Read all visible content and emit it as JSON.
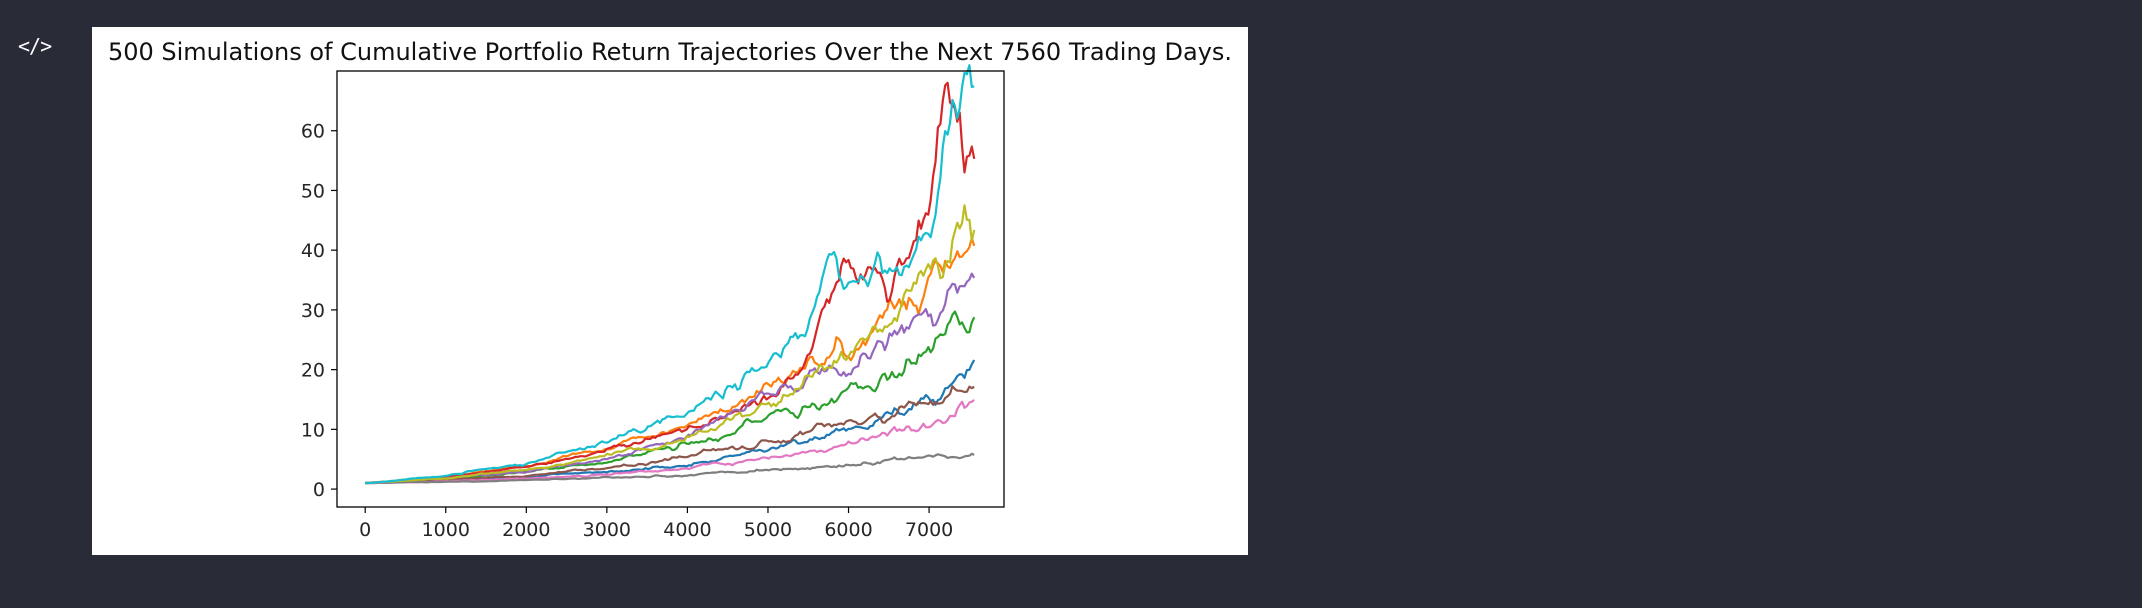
{
  "cell": {
    "icon": "code-icon",
    "icon_glyph": "</>"
  },
  "chart_data": {
    "type": "line",
    "title": "500 Simulations of Cumulative Portfolio Return Trajectories Over the Next 7560 Trading Days.",
    "xlabel": "",
    "ylabel": "",
    "xlim": [
      -350,
      7930
    ],
    "ylim": [
      -3,
      70
    ],
    "x_ticks": [
      0,
      1000,
      2000,
      3000,
      4000,
      5000,
      6000,
      7000
    ],
    "y_ticks": [
      0,
      10,
      20,
      30,
      40,
      50,
      60
    ],
    "grid": false,
    "legend": "none",
    "series_count": 500,
    "n_points": 7561,
    "palette": [
      "#1f77b4",
      "#ff7f0e",
      "#2ca02c",
      "#d62728",
      "#9467bd",
      "#8c564b",
      "#e377c2",
      "#7f7f7f",
      "#bcbd22",
      "#17becf"
    ],
    "series": [
      {
        "color": "#1f77b4",
        "x": [
          0,
          1000,
          2000,
          3000,
          4000,
          5000,
          6000,
          7000,
          7560
        ],
        "values": [
          1,
          1.4,
          2.0,
          2.9,
          4.2,
          6.5,
          10,
          16,
          22
        ]
      },
      {
        "color": "#ff7f0e",
        "x": [
          0,
          1000,
          2000,
          3000,
          4000,
          5000,
          6000,
          7000,
          7560
        ],
        "values": [
          1,
          2.0,
          4.0,
          7.0,
          11,
          17,
          24,
          36,
          42
        ]
      },
      {
        "color": "#2ca02c",
        "x": [
          0,
          1000,
          2000,
          3000,
          4000,
          5000,
          6000,
          7000,
          7560
        ],
        "values": [
          1,
          1.6,
          2.8,
          4.5,
          7.5,
          11,
          16,
          24,
          28
        ]
      },
      {
        "color": "#d62728",
        "x": [
          0,
          1000,
          2000,
          3000,
          4000,
          4500,
          5000,
          5500,
          6000,
          6300,
          6500,
          7000,
          7200,
          7560
        ],
        "values": [
          1,
          2.0,
          3.8,
          6.5,
          10,
          12,
          15,
          22,
          40,
          36,
          33,
          46,
          64,
          55
        ]
      },
      {
        "color": "#9467bd",
        "x": [
          0,
          1000,
          2000,
          3000,
          4000,
          4500,
          5000,
          6000,
          7000,
          7560
        ],
        "values": [
          1,
          1.7,
          3.0,
          5.0,
          9,
          13,
          17,
          20,
          26,
          33
        ]
      },
      {
        "color": "#8c564b",
        "x": [
          0,
          1000,
          2000,
          3000,
          4000,
          5000,
          6000,
          7000,
          7560
        ],
        "values": [
          1,
          1.5,
          2.3,
          3.5,
          5.5,
          8,
          11,
          15,
          18
        ]
      },
      {
        "color": "#e377c2",
        "x": [
          0,
          1000,
          2000,
          3000,
          4000,
          5000,
          6000,
          7000,
          7560
        ],
        "values": [
          1,
          1.3,
          1.8,
          2.5,
          3.6,
          5.2,
          7.5,
          11,
          14
        ]
      },
      {
        "color": "#7f7f7f",
        "x": [
          0,
          1000,
          2000,
          3000,
          4000,
          5000,
          6000,
          7000,
          7560
        ],
        "values": [
          1,
          1.2,
          1.5,
          1.9,
          2.4,
          3.1,
          4.0,
          5.2,
          6
        ]
      },
      {
        "color": "#bcbd22",
        "x": [
          0,
          1000,
          2000,
          3000,
          4000,
          5000,
          6000,
          7000,
          7560
        ],
        "values": [
          1,
          1.8,
          3.3,
          5.5,
          9,
          14,
          22,
          38,
          46
        ]
      },
      {
        "color": "#17becf",
        "x": [
          0,
          1000,
          2000,
          3000,
          4000,
          5000,
          5500,
          5800,
          6000,
          6500,
          7000,
          7300,
          7560
        ],
        "values": [
          1,
          2.2,
          4.5,
          8,
          13,
          20,
          28,
          37,
          34,
          38,
          42,
          60,
          66
        ]
      }
    ]
  }
}
